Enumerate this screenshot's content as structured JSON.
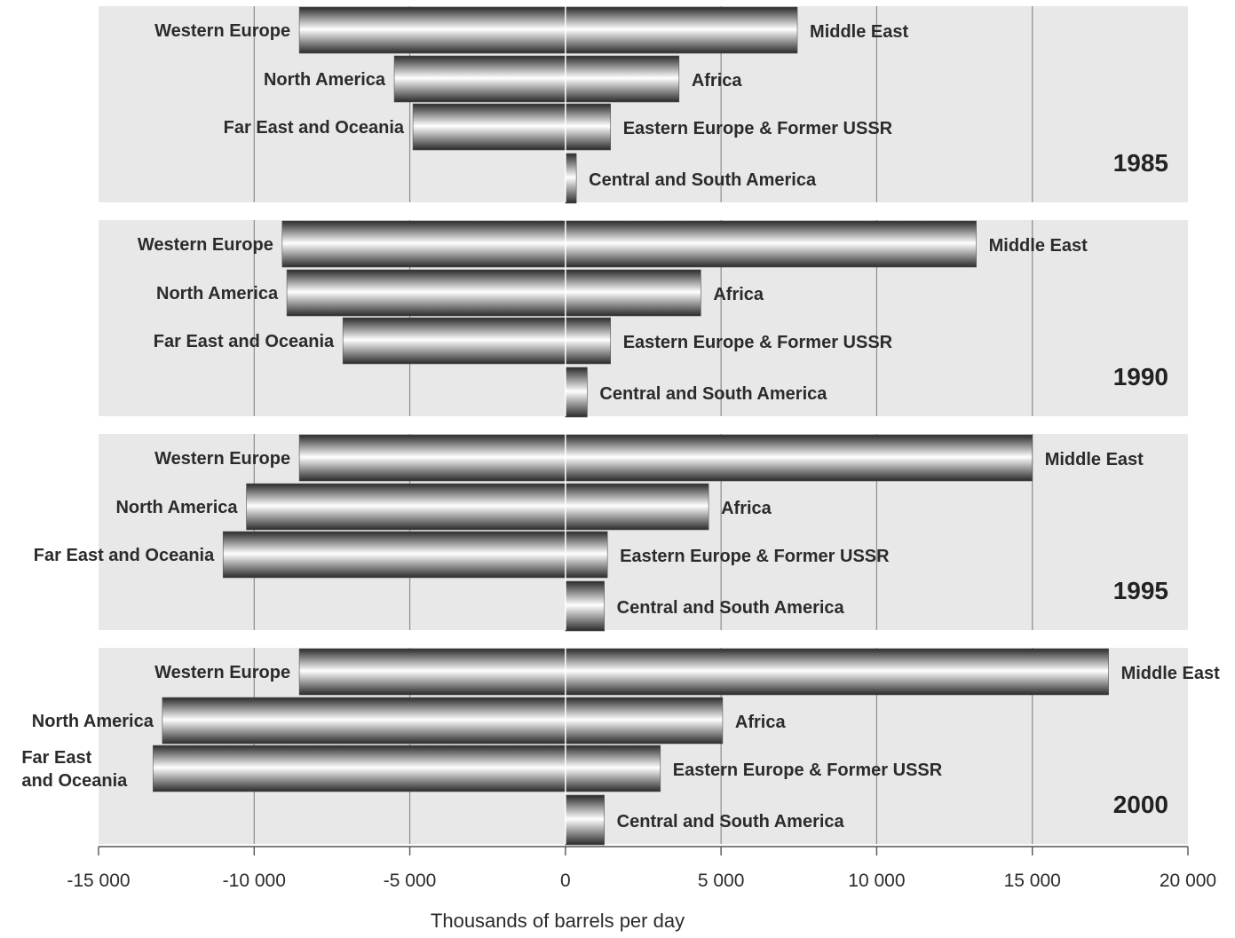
{
  "chart_data": {
    "type": "bar",
    "orientation": "horizontal",
    "xlabel": "Thousands of barrels per day",
    "xlim": [
      -15000,
      20000
    ],
    "xticks": [
      -15000,
      -10000,
      -5000,
      0,
      5000,
      10000,
      15000,
      20000
    ],
    "xtick_labels": [
      "-15 000",
      "-10 000",
      "-5 000",
      "0",
      "5 000",
      "10 000",
      "15 000",
      "20 000"
    ],
    "grid": true,
    "colors": {
      "panel_bg": "#e8e8e8",
      "bar_dark": "#2a2a2a",
      "bar_light": "#ffffff",
      "grid": "#8c8c8c"
    },
    "panels": [
      {
        "year": "1985",
        "importers": [
          {
            "label": "Western Europe",
            "value": -8550
          },
          {
            "label": "North America",
            "value": -5500
          },
          {
            "label": "Far East and Oceania",
            "value": -4900
          }
        ],
        "exporters": [
          {
            "label": "Middle East",
            "value": 7450
          },
          {
            "label": "Africa",
            "value": 3650
          },
          {
            "label": "Eastern Europe & Former USSR",
            "value": 1450
          },
          {
            "label": "Central and South America",
            "value": 350
          }
        ]
      },
      {
        "year": "1990",
        "importers": [
          {
            "label": "Western Europe",
            "value": -9100
          },
          {
            "label": "North America",
            "value": -8950
          },
          {
            "label": "Far East and Oceania",
            "value": -7150
          }
        ],
        "exporters": [
          {
            "label": "Middle East",
            "value": 13200
          },
          {
            "label": "Africa",
            "value": 4350
          },
          {
            "label": "Eastern Europe & Former USSR",
            "value": 1450
          },
          {
            "label": "Central and South America",
            "value": 700
          }
        ]
      },
      {
        "year": "1995",
        "importers": [
          {
            "label": "Western Europe",
            "value": -8550
          },
          {
            "label": "North America",
            "value": -10250
          },
          {
            "label": "Far East and Oceania",
            "value": -11000
          }
        ],
        "exporters": [
          {
            "label": "Middle East",
            "value": 15000
          },
          {
            "label": "Africa",
            "value": 4600
          },
          {
            "label": "Eastern Europe & Former USSR",
            "value": 1350
          },
          {
            "label": "Central and South America",
            "value": 1250
          }
        ]
      },
      {
        "year": "2000",
        "importers": [
          {
            "label": "Western Europe",
            "value": -8550
          },
          {
            "label": "North America",
            "value": -12950
          },
          {
            "label": "Far East\nand Oceania",
            "value": -13250
          }
        ],
        "exporters": [
          {
            "label": "Middle East",
            "value": 17450
          },
          {
            "label": "Africa",
            "value": 5050
          },
          {
            "label": "Eastern Europe & Former USSR",
            "value": 3050
          },
          {
            "label": "Central and South America",
            "value": 1250
          }
        ]
      }
    ]
  }
}
